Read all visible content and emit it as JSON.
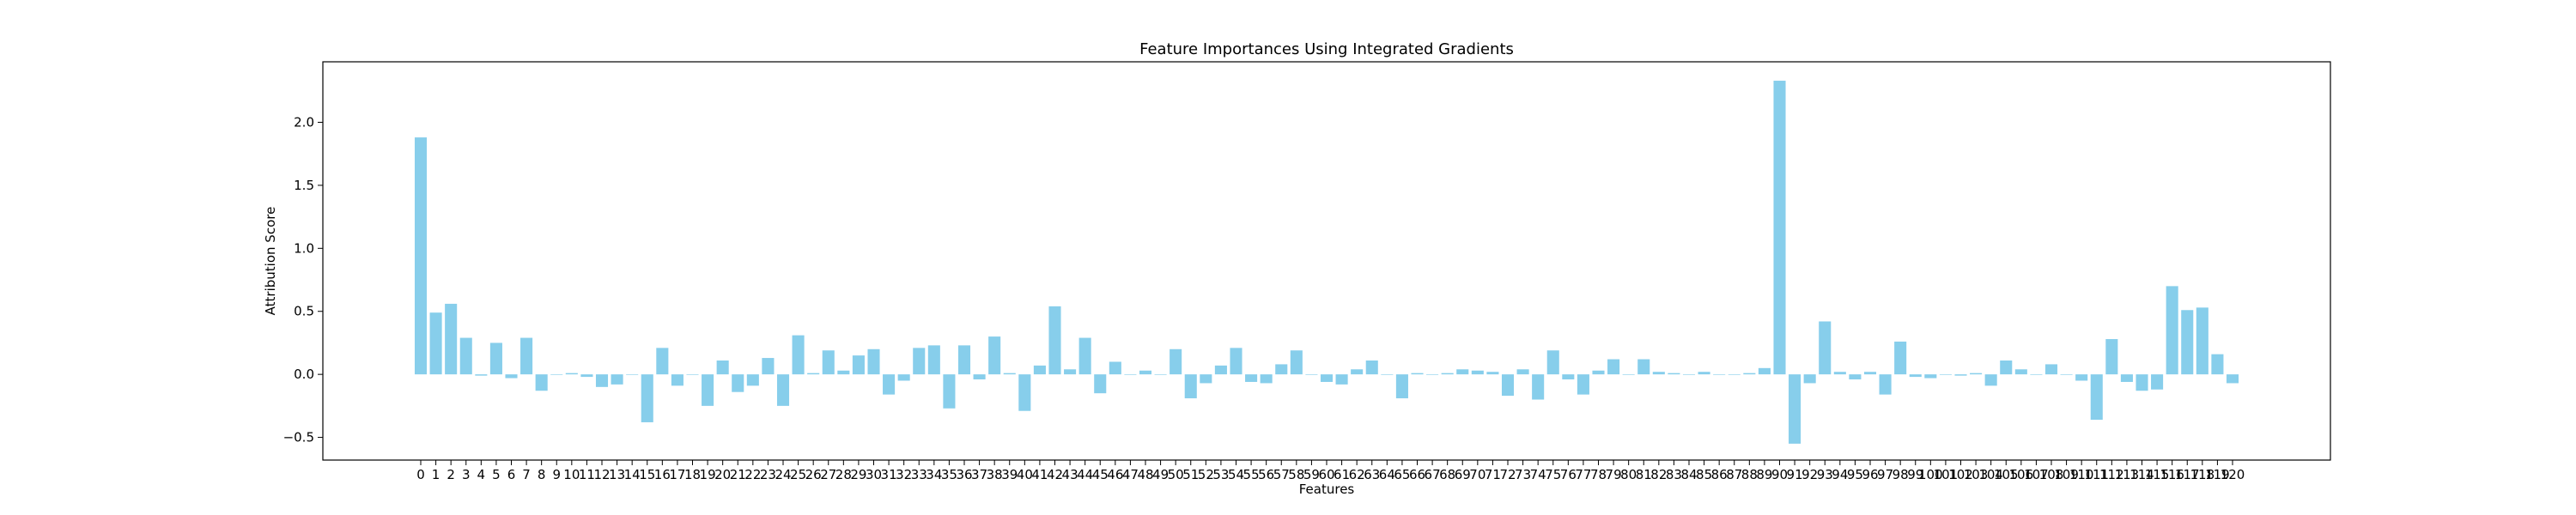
{
  "chart_data": {
    "type": "bar",
    "title": "Feature Importances Using Integrated Gradients",
    "xlabel": "Features",
    "ylabel": "Attribution Score",
    "ylim": [
      -0.68,
      2.48
    ],
    "yticks": [
      -0.5,
      0.0,
      0.5,
      1.0,
      1.5,
      2.0
    ],
    "ytick_labels": [
      "−0.5",
      "0.0",
      "0.5",
      "1.0",
      "1.5",
      "2.0"
    ],
    "grid": false,
    "bar_color": "#87ceeb",
    "categories": [
      "0",
      "1",
      "2",
      "3",
      "4",
      "5",
      "6",
      "7",
      "8",
      "9",
      "10",
      "11",
      "12",
      "13",
      "14",
      "15",
      "16",
      "17",
      "18",
      "19",
      "20",
      "21",
      "22",
      "23",
      "24",
      "25",
      "26",
      "27",
      "28",
      "29",
      "30",
      "31",
      "32",
      "33",
      "34",
      "35",
      "36",
      "37",
      "38",
      "39",
      "40",
      "41",
      "42",
      "43",
      "44",
      "45",
      "46",
      "47",
      "48",
      "49",
      "50",
      "51",
      "52",
      "53",
      "54",
      "55",
      "56",
      "57",
      "58",
      "59",
      "60",
      "61",
      "62",
      "63",
      "64",
      "65",
      "66",
      "67",
      "68",
      "69",
      "70",
      "71",
      "72",
      "73",
      "74",
      "75",
      "76",
      "77",
      "78",
      "79",
      "80",
      "81",
      "82",
      "83",
      "84",
      "85",
      "86",
      "87",
      "88",
      "89",
      "90",
      "91",
      "92",
      "93",
      "94",
      "95",
      "96",
      "97",
      "98",
      "99",
      "100",
      "101",
      "102",
      "103",
      "104",
      "105",
      "106",
      "107",
      "108",
      "109",
      "110",
      "111",
      "112",
      "113",
      "114",
      "115",
      "116",
      "117",
      "118",
      "119",
      "120"
    ],
    "values": [
      1.88,
      0.49,
      0.56,
      0.29,
      -0.01,
      0.25,
      -0.03,
      0.29,
      -0.13,
      0.0,
      0.01,
      -0.02,
      -0.1,
      -0.08,
      0.0,
      -0.38,
      0.21,
      -0.09,
      0.0,
      -0.25,
      0.11,
      -0.14,
      -0.09,
      0.13,
      -0.25,
      0.31,
      0.01,
      0.19,
      0.03,
      0.15,
      0.2,
      -0.16,
      -0.05,
      0.21,
      0.23,
      -0.27,
      0.23,
      -0.04,
      0.3,
      0.01,
      -0.29,
      0.07,
      0.54,
      0.04,
      0.29,
      -0.15,
      0.1,
      0.0,
      0.03,
      0.0,
      0.2,
      -0.19,
      -0.07,
      0.07,
      0.21,
      -0.06,
      -0.07,
      0.08,
      0.19,
      0.0,
      -0.06,
      -0.08,
      0.04,
      0.11,
      0.0,
      -0.19,
      0.01,
      0.0,
      0.01,
      0.04,
      0.03,
      0.02,
      -0.17,
      0.04,
      -0.2,
      0.19,
      -0.04,
      -0.16,
      0.03,
      0.12,
      0.0,
      0.12,
      0.02,
      0.01,
      0.0,
      0.02,
      0.0,
      0.0,
      0.01,
      0.05,
      2.33,
      -0.55,
      -0.07,
      0.42,
      0.02,
      -0.04,
      0.02,
      -0.16,
      0.26,
      -0.02,
      -0.03,
      0.0,
      -0.01,
      0.01,
      -0.09,
      0.11,
      0.04,
      0.0,
      0.08,
      0.0,
      -0.05,
      -0.36,
      0.28,
      -0.06,
      -0.13,
      -0.12,
      0.7,
      0.51,
      0.53,
      0.16,
      -0.07
    ]
  }
}
